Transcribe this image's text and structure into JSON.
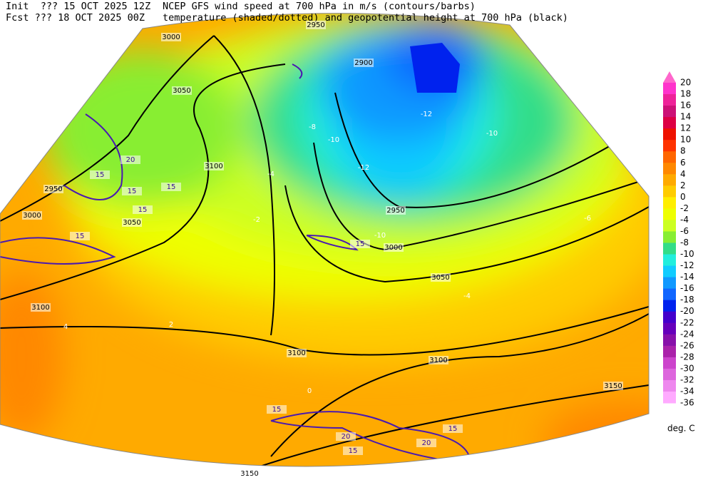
{
  "header": {
    "init": "Init  ??? 15 OCT 2025 12Z",
    "init_desc": "NCEP GFS wind speed at 700 hPa in m/s (contours/barbs)",
    "fcst": "Fcst ??? 18 OCT 2025 00Z",
    "fcst_desc": "temperature (shaded/dotted) and geopotential height at 700 hPa (black)"
  },
  "colorbar": {
    "labels": [
      20,
      18,
      16,
      14,
      12,
      10,
      8,
      6,
      4,
      2,
      0,
      -2,
      -4,
      -6,
      -8,
      -10,
      -12,
      -14,
      -16,
      -18,
      -20,
      -22,
      -24,
      -26,
      -28,
      -30,
      -32,
      -34,
      -36
    ],
    "colors": [
      "#ff33cc",
      "#ee2299",
      "#cc1177",
      "#dd0044",
      "#ee1100",
      "#ff3300",
      "#ff6600",
      "#ff8800",
      "#ffaa00",
      "#ffcc00",
      "#ffee00",
      "#eeff00",
      "#ccff22",
      "#88ee33",
      "#33dd88",
      "#22eedd",
      "#11ccff",
      "#1199ff",
      "#1166ff",
      "#0022ee",
      "#4400cc",
      "#6600bb",
      "#8811aa",
      "#aa22aa",
      "#cc44cc",
      "#dd66dd",
      "#ee88ee",
      "#ffaaff"
    ],
    "top_color": "#ff66cc",
    "unit": "deg. C"
  },
  "height_labels": [
    3000,
    3050,
    2950,
    2900,
    2950,
    3000,
    3050,
    3100,
    3100,
    3150,
    3150,
    3100,
    3000,
    2950,
    3050,
    3100
  ],
  "wind_labels": [
    15,
    20,
    15,
    15,
    15,
    15,
    20,
    15,
    15,
    20,
    15,
    15
  ],
  "temp_labels": [
    -4,
    -8,
    -10,
    -12,
    -10,
    -2,
    0,
    2,
    4,
    -4,
    -12,
    -10,
    -6
  ]
}
